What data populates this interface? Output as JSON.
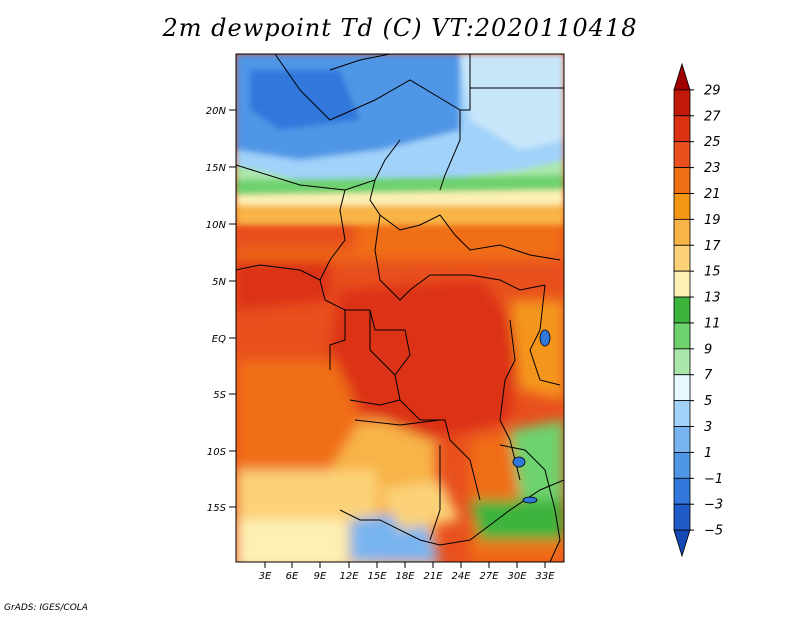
{
  "title": "2m dewpoint Td (C) VT:2020110418",
  "footer": "GrADS: IGES/COLA",
  "map": {
    "lat_ticks": [
      "20N",
      "15N",
      "10N",
      "5N",
      "EQ",
      "5S",
      "10S",
      "15S"
    ],
    "lon_ticks": [
      "3E",
      "6E",
      "9E",
      "12E",
      "15E",
      "18E",
      "21E",
      "24E",
      "27E",
      "30E",
      "33E"
    ]
  },
  "colorbar": {
    "levels": [
      "29",
      "27",
      "25",
      "23",
      "21",
      "19",
      "17",
      "15",
      "13",
      "11",
      "9",
      "7",
      "5",
      "3",
      "1",
      "−1",
      "−3",
      "−5"
    ],
    "colors": [
      "#a00000",
      "#c21a0a",
      "#dc3214",
      "#e8501e",
      "#f06e14",
      "#f59614",
      "#f8b446",
      "#fbd278",
      "#fdf0b4",
      "#3cb43c",
      "#6ed26e",
      "#aae6aa",
      "#e6faff",
      "#a0d2fa",
      "#78b4f0",
      "#5096e6",
      "#3278dc",
      "#1e5ac8",
      "#1448b4"
    ]
  }
}
